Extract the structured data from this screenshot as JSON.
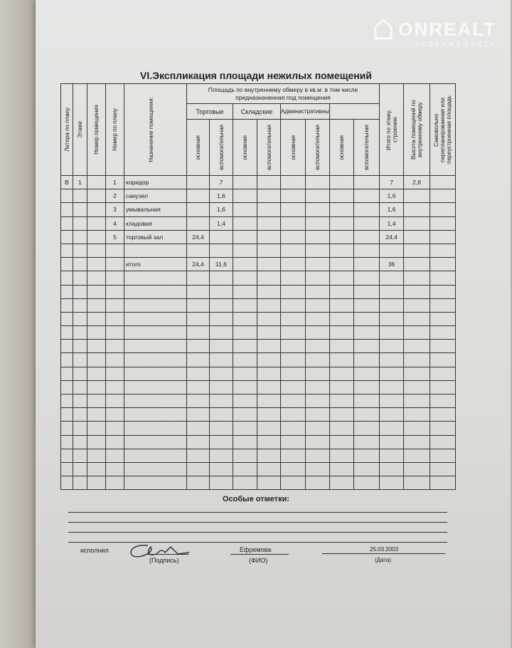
{
  "watermark": {
    "brand": "ONREALT",
    "subtitle": "НЕДВИЖИМОСТЬ"
  },
  "title": "VI.Экспликация площади нежилых помещений",
  "headers": {
    "litera": "Литера по плану",
    "floors": "Этажи",
    "room_number": "Номер помещения",
    "plan_number": "Номер по плану",
    "purpose": "Назначение помещения:",
    "area_group": "Площадь по внутреннему обмеру в кв.м. в том числе предназначенная  под помещения",
    "groups": [
      "Торговые",
      "Складские",
      "Административные",
      ""
    ],
    "main": "основная",
    "aux": "вспомогательная",
    "total": "Итого по этажу, строению",
    "height": "Высота помещений по внутреннему обмеру",
    "unauthorized": "Самовольно перепланированная или переустроенная площадь"
  },
  "rows": [
    {
      "litera": "В",
      "floor": "1",
      "room": "",
      "plan": "1",
      "purpose": "коридор",
      "trade_main": "",
      "trade_aux": "7",
      "total": "7",
      "height": "2,8"
    },
    {
      "litera": "",
      "floor": "",
      "room": "",
      "plan": "2",
      "purpose": "санузел",
      "trade_main": "",
      "trade_aux": "1,6",
      "total": "1,6",
      "height": ""
    },
    {
      "litera": "",
      "floor": "",
      "room": "",
      "plan": "3",
      "purpose": "умывальная",
      "trade_main": "",
      "trade_aux": "1,6",
      "total": "1,6",
      "height": ""
    },
    {
      "litera": "",
      "floor": "",
      "room": "",
      "plan": "4",
      "purpose": "кладовая",
      "trade_main": "",
      "trade_aux": "1,4",
      "total": "1,4",
      "height": ""
    },
    {
      "litera": "",
      "floor": "",
      "room": "",
      "plan": "5",
      "purpose": "торговый зал",
      "trade_main": "24,4",
      "trade_aux": "",
      "total": "24,4",
      "height": ""
    },
    {
      "litera": "",
      "floor": "",
      "room": "",
      "plan": "",
      "purpose": "",
      "trade_main": "",
      "trade_aux": "",
      "total": "",
      "height": ""
    },
    {
      "litera": "",
      "floor": "",
      "room": "",
      "plan": "",
      "purpose": "итого",
      "trade_main": "24,4",
      "trade_aux": "11,6",
      "total": "36",
      "height": ""
    }
  ],
  "notes_label": "Особые отметки:",
  "footer": {
    "performed_by": "исполнил",
    "signature_label": "(Подпись)",
    "name": "Ефремова",
    "name_label": "(ФИО)",
    "date": "25.03.2003",
    "date_label": "(Дата)"
  }
}
